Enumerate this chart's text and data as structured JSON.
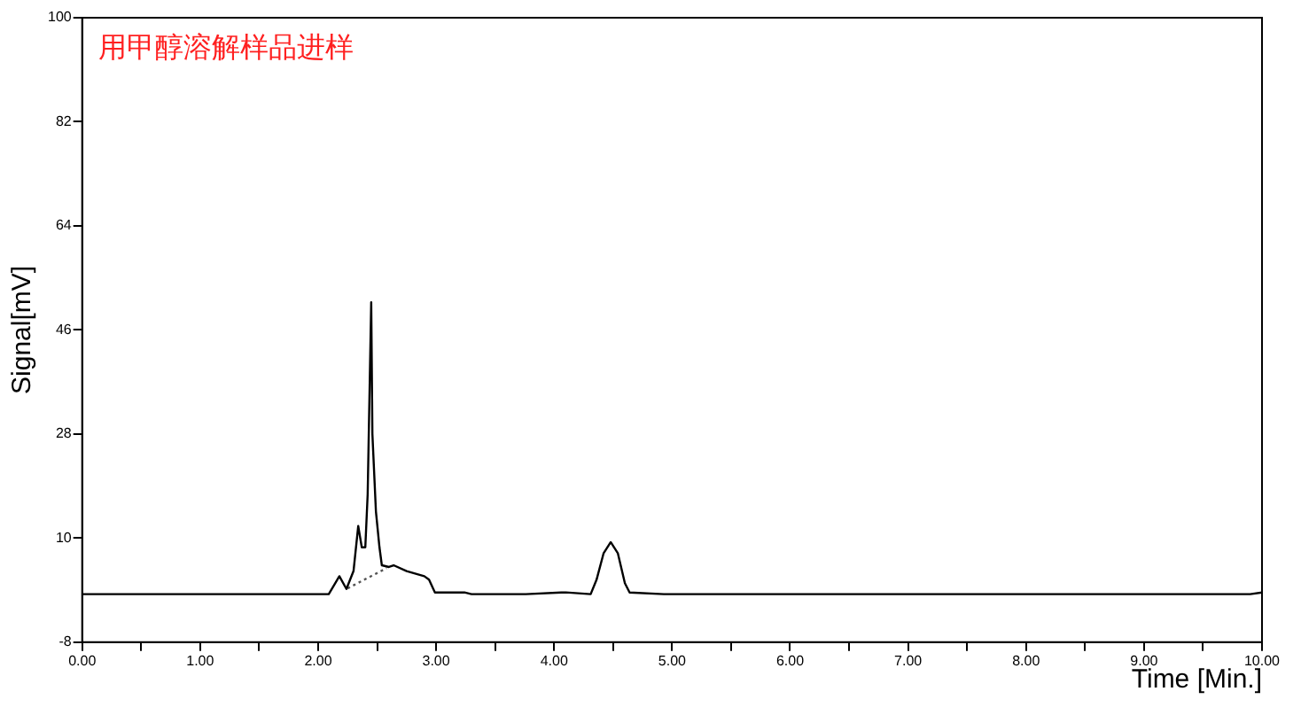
{
  "chart_data": {
    "type": "line",
    "xlabel": "Time [Min.]",
    "ylabel": "Signal[mV]",
    "annotations": [
      "用甲醇溶解样品进样"
    ],
    "xlim": [
      0,
      10
    ],
    "ylim": [
      -8,
      100
    ],
    "xticks": [
      {
        "value": 0,
        "label": "0.00"
      },
      {
        "value": 0.5,
        "label": null
      },
      {
        "value": 1,
        "label": "1.00"
      },
      {
        "value": 1.5,
        "label": null
      },
      {
        "value": 2,
        "label": "2.00"
      },
      {
        "value": 2.5,
        "label": null
      },
      {
        "value": 3,
        "label": "3.00"
      },
      {
        "value": 3.5,
        "label": null
      },
      {
        "value": 4,
        "label": "4.00"
      },
      {
        "value": 4.5,
        "label": null
      },
      {
        "value": 5,
        "label": "5.00"
      },
      {
        "value": 5.5,
        "label": null
      },
      {
        "value": 6,
        "label": "6.00"
      },
      {
        "value": 6.5,
        "label": null
      },
      {
        "value": 7,
        "label": "7.00"
      },
      {
        "value": 7.5,
        "label": null
      },
      {
        "value": 8,
        "label": "8.00"
      },
      {
        "value": 8.5,
        "label": null
      },
      {
        "value": 9,
        "label": "9.00"
      },
      {
        "value": 9.5,
        "label": null
      },
      {
        "value": 10,
        "label": "10.00"
      }
    ],
    "yticks": [
      -8,
      10,
      28,
      46,
      64,
      82,
      100
    ],
    "grid": false,
    "legend": false,
    "marker": "none",
    "series": [
      {
        "color": "#000000",
        "x": [
          0,
          2.09,
          2.18,
          2.24,
          2.3,
          2.34,
          2.37,
          2.4,
          2.42,
          2.45,
          2.46,
          2.49,
          2.52,
          2.54,
          2.6,
          2.64,
          2.75,
          2.9,
          2.94,
          2.99,
          3.24,
          3.3,
          3.76,
          4.06,
          4.1,
          4.31,
          4.36,
          4.42,
          4.48,
          4.54,
          4.6,
          4.64,
          4.93,
          9.9,
          10
        ],
        "values": [
          0.3,
          0.3,
          3.4,
          1.2,
          4.3,
          12.1,
          8.4,
          8.4,
          17.6,
          50.8,
          28,
          14.6,
          8.4,
          5.3,
          5,
          5.3,
          4.3,
          3.4,
          2.8,
          0.6,
          0.6,
          0.3,
          0.3,
          0.6,
          0.6,
          0.3,
          2.8,
          7.4,
          9.3,
          7.4,
          2.2,
          0.6,
          0.3,
          0.3,
          0.6
        ]
      },
      {
        "color": "#555555",
        "type": "line",
        "line_style": "dotted",
        "x": [
          2.25,
          2.58
        ],
        "values": [
          1.3,
          4.8
        ]
      }
    ]
  }
}
